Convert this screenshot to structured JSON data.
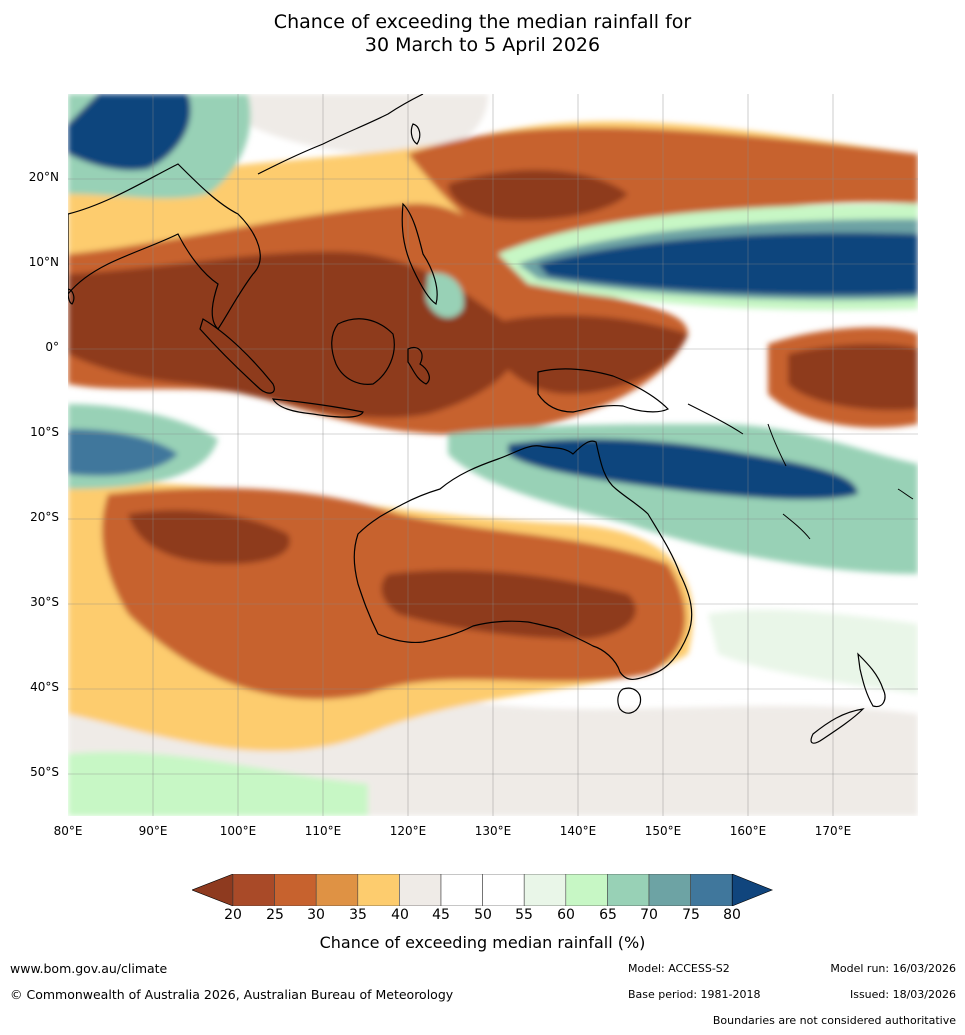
{
  "title": {
    "line1": "Chance of exceeding the median rainfall for",
    "line2": "30 March to 5 April 2026"
  },
  "map": {
    "region": "Australia, Maritime Continent and western Pacific",
    "lat_labels": [
      "20°N",
      "10°N",
      "0°",
      "10°S",
      "20°S",
      "30°S",
      "40°S",
      "50°S"
    ],
    "lon_labels": [
      "80°E",
      "90°E",
      "100°E",
      "110°E",
      "120°E",
      "130°E",
      "140°E",
      "150°E",
      "160°E",
      "170°E"
    ]
  },
  "colorbar": {
    "label": "Chance of exceeding median rainfall (%)",
    "ticks": [
      "20",
      "25",
      "30",
      "35",
      "40",
      "45",
      "50",
      "55",
      "60",
      "65",
      "70",
      "75",
      "80"
    ],
    "colors": [
      "#8e3a1f",
      "#a94a28",
      "#c7622e",
      "#df9244",
      "#fdcc6e",
      "#efebe7",
      "#ffffff",
      "#ffffff",
      "#e9f6e8",
      "#c7f7c5",
      "#98d1b6",
      "#6da3a4",
      "#40779c",
      "#10457d"
    ]
  },
  "footer": {
    "website": "www.bom.gov.au/climate",
    "copyright": "© Commonwealth of Australia 2026, Australian Bureau of Meteorology",
    "model": "Model: ACCESS-S2",
    "base_period": "Base period: 1981-2018",
    "model_run": "Model run: 16/03/2026",
    "issued": "Issued: 18/03/2026",
    "disclaimer": "Boundaries are not considered authoritative"
  }
}
